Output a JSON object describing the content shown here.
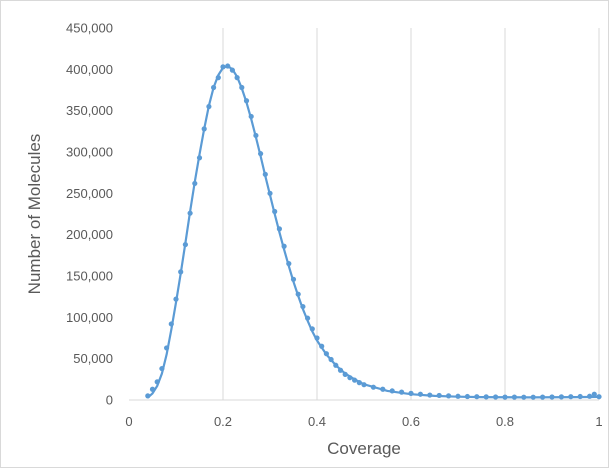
{
  "chart_data": {
    "type": "scatter",
    "xlabel": "Coverage",
    "ylabel": "Number of Molecules",
    "xlim": [
      0,
      1
    ],
    "ylim": [
      0,
      450000
    ],
    "x_ticks": [
      0,
      0.2,
      0.4,
      0.6,
      0.8,
      1
    ],
    "x_tick_labels": [
      "0",
      "0.2",
      "0.4",
      "0.6",
      "0.8",
      "1"
    ],
    "y_ticks": [
      0,
      50000,
      100000,
      150000,
      200000,
      250000,
      300000,
      350000,
      400000,
      450000
    ],
    "y_tick_labels": [
      "0",
      "50,000",
      "100,000",
      "150,000",
      "200,000",
      "250,000",
      "300,000",
      "350,000",
      "400,000",
      "450,000"
    ],
    "grid": "vertical",
    "legend": "none",
    "colors": {
      "series": "#5b9bd5",
      "grid": "#d9d9d9",
      "text": "#595959"
    },
    "series": [
      {
        "mode": "markers",
        "x": [
          0.04,
          0.05,
          0.06,
          0.07,
          0.08,
          0.09,
          0.1,
          0.11,
          0.12,
          0.13,
          0.14,
          0.15,
          0.16,
          0.17,
          0.18,
          0.19,
          0.2,
          0.21,
          0.22,
          0.23,
          0.24,
          0.25,
          0.26,
          0.27,
          0.28,
          0.29,
          0.3,
          0.31,
          0.32,
          0.33,
          0.34,
          0.35,
          0.36,
          0.37,
          0.38,
          0.39,
          0.4,
          0.41,
          0.42,
          0.43,
          0.44,
          0.45,
          0.46,
          0.47,
          0.48,
          0.49,
          0.5,
          0.52,
          0.54,
          0.56,
          0.58,
          0.6,
          0.62,
          0.64,
          0.66,
          0.68,
          0.7,
          0.72,
          0.74,
          0.76,
          0.78,
          0.8,
          0.82,
          0.84,
          0.86,
          0.88,
          0.9,
          0.92,
          0.94,
          0.96,
          0.98,
          0.99,
          1.0
        ],
        "y": [
          5000,
          13000,
          22000,
          38000,
          63000,
          92000,
          122000,
          155000,
          188000,
          226000,
          262000,
          293000,
          328000,
          355000,
          378000,
          390000,
          403000,
          404000,
          399000,
          390000,
          378000,
          362000,
          343000,
          320000,
          298000,
          273000,
          250000,
          228000,
          207000,
          186000,
          165000,
          146000,
          128000,
          113000,
          99000,
          86000,
          75000,
          65000,
          56000,
          49000,
          42000,
          36000,
          31000,
          27000,
          24000,
          21000,
          18500,
          15500,
          13000,
          11000,
          9500,
          8000,
          7000,
          6000,
          5500,
          5000,
          4500,
          4200,
          4000,
          3800,
          3600,
          3500,
          3500,
          3400,
          3400,
          3500,
          3600,
          3800,
          4000,
          4200,
          4500,
          7000,
          4000
        ]
      },
      {
        "mode": "line",
        "x": [
          0.04,
          0.05,
          0.06,
          0.07,
          0.08,
          0.09,
          0.1,
          0.11,
          0.12,
          0.13,
          0.14,
          0.15,
          0.16,
          0.17,
          0.18,
          0.19,
          0.2,
          0.21,
          0.22,
          0.23,
          0.24,
          0.25,
          0.26,
          0.27,
          0.28,
          0.29,
          0.3,
          0.31,
          0.32,
          0.33,
          0.34,
          0.35,
          0.36,
          0.37,
          0.38,
          0.39,
          0.4,
          0.42,
          0.44,
          0.46,
          0.48,
          0.5,
          0.55,
          0.6,
          0.65,
          0.7,
          0.75,
          0.8,
          0.85,
          0.9,
          0.95,
          1.0
        ],
        "y": [
          3000,
          8000,
          17000,
          32000,
          55000,
          85000,
          118000,
          153000,
          190000,
          228000,
          264000,
          297000,
          328000,
          356000,
          378000,
          393000,
          402000,
          404000,
          400000,
          391000,
          377000,
          360000,
          340000,
          318000,
          295000,
          271000,
          248000,
          225000,
          203000,
          182000,
          162000,
          143000,
          126000,
          110000,
          96000,
          83000,
          72000,
          55000,
          42000,
          32000,
          25000,
          19000,
          11000,
          7000,
          5000,
          4000,
          3500,
          3300,
          3200,
          3300,
          3500,
          3800
        ]
      }
    ]
  }
}
